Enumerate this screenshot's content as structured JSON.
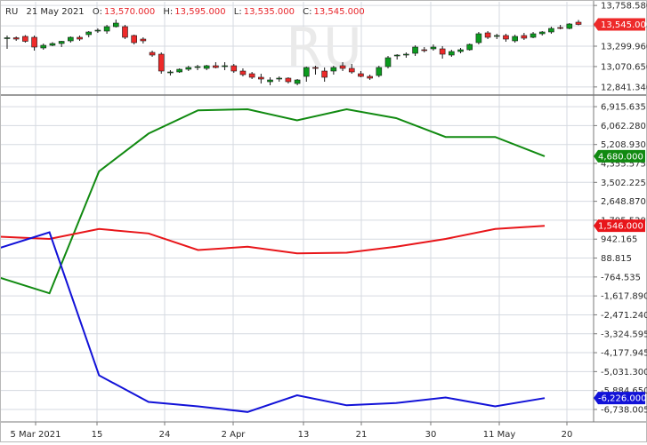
{
  "info_bar": {
    "symbol": "RU",
    "date": "21 May 2021",
    "open_label": "O:",
    "open": "13,570.000",
    "high_label": "H:",
    "high": "13,595.000",
    "low_label": "L:",
    "low": "13,535.000",
    "close_label": "C:",
    "close": "13,545.000"
  },
  "watermark": "RU",
  "colors": {
    "up": "#0b9b1e",
    "down": "#ee2a2a",
    "grid": "#d6dae1",
    "series_green": "#118a11",
    "series_red": "#e8161a",
    "series_blue": "#1212d8",
    "border": "#7a7a7a"
  },
  "chart_data": [
    {
      "type": "candlestick",
      "price_ticks": [
        "13,758.580",
        "13,529.340",
        "13,299.960",
        "13,070.650",
        "12,841.340"
      ],
      "current_price_label": "13,545.000",
      "ylim": [
        12760,
        13800
      ],
      "candles": [
        {
          "o": 13390,
          "h": 13420,
          "l": 13270,
          "c": 13395
        },
        {
          "o": 13395,
          "h": 13410,
          "l": 13360,
          "c": 13380
        },
        {
          "o": 13410,
          "h": 13425,
          "l": 13340,
          "c": 13355
        },
        {
          "o": 13400,
          "h": 13420,
          "l": 13250,
          "c": 13290
        },
        {
          "o": 13280,
          "h": 13330,
          "l": 13260,
          "c": 13310
        },
        {
          "o": 13310,
          "h": 13345,
          "l": 13300,
          "c": 13330
        },
        {
          "o": 13330,
          "h": 13360,
          "l": 13290,
          "c": 13355
        },
        {
          "o": 13360,
          "h": 13410,
          "l": 13340,
          "c": 13400
        },
        {
          "o": 13400,
          "h": 13420,
          "l": 13360,
          "c": 13380
        },
        {
          "o": 13430,
          "h": 13470,
          "l": 13400,
          "c": 13460
        },
        {
          "o": 13470,
          "h": 13500,
          "l": 13450,
          "c": 13480
        },
        {
          "o": 13470,
          "h": 13540,
          "l": 13440,
          "c": 13520
        },
        {
          "o": 13520,
          "h": 13600,
          "l": 13510,
          "c": 13560
        },
        {
          "o": 13520,
          "h": 13540,
          "l": 13380,
          "c": 13400
        },
        {
          "o": 13420,
          "h": 13430,
          "l": 13320,
          "c": 13340
        },
        {
          "o": 13380,
          "h": 13400,
          "l": 13330,
          "c": 13360
        },
        {
          "o": 13230,
          "h": 13250,
          "l": 13180,
          "c": 13200
        },
        {
          "o": 13210,
          "h": 13230,
          "l": 12990,
          "c": 13020
        },
        {
          "o": 13000,
          "h": 13030,
          "l": 12970,
          "c": 13010
        },
        {
          "o": 13010,
          "h": 13050,
          "l": 13000,
          "c": 13040
        },
        {
          "o": 13040,
          "h": 13080,
          "l": 13020,
          "c": 13060
        },
        {
          "o": 13060,
          "h": 13090,
          "l": 13030,
          "c": 13070
        },
        {
          "o": 13050,
          "h": 13090,
          "l": 13030,
          "c": 13080
        },
        {
          "o": 13080,
          "h": 13120,
          "l": 13050,
          "c": 13060
        },
        {
          "o": 13070,
          "h": 13120,
          "l": 13030,
          "c": 13080
        },
        {
          "o": 13080,
          "h": 13100,
          "l": 13000,
          "c": 13020
        },
        {
          "o": 13020,
          "h": 13050,
          "l": 12960,
          "c": 12980
        },
        {
          "o": 12990,
          "h": 13010,
          "l": 12930,
          "c": 12950
        },
        {
          "o": 12950,
          "h": 12990,
          "l": 12880,
          "c": 12930
        },
        {
          "o": 12900,
          "h": 12950,
          "l": 12860,
          "c": 12920
        },
        {
          "o": 12930,
          "h": 12960,
          "l": 12900,
          "c": 12940
        },
        {
          "o": 12940,
          "h": 12950,
          "l": 12880,
          "c": 12900
        },
        {
          "o": 12880,
          "h": 12930,
          "l": 12860,
          "c": 12920
        },
        {
          "o": 12960,
          "h": 13070,
          "l": 12900,
          "c": 13060
        },
        {
          "o": 13060,
          "h": 13080,
          "l": 12980,
          "c": 13050
        },
        {
          "o": 13020,
          "h": 13060,
          "l": 12900,
          "c": 12950
        },
        {
          "o": 13020,
          "h": 13080,
          "l": 12980,
          "c": 13060
        },
        {
          "o": 13080,
          "h": 13120,
          "l": 13020,
          "c": 13050
        },
        {
          "o": 13050,
          "h": 13100,
          "l": 12990,
          "c": 13010
        },
        {
          "o": 12990,
          "h": 13020,
          "l": 12950,
          "c": 12960
        },
        {
          "o": 12960,
          "h": 12980,
          "l": 12920,
          "c": 12940
        },
        {
          "o": 12970,
          "h": 13080,
          "l": 12950,
          "c": 13060
        },
        {
          "o": 13070,
          "h": 13190,
          "l": 13050,
          "c": 13170
        },
        {
          "o": 13190,
          "h": 13210,
          "l": 13150,
          "c": 13200
        },
        {
          "o": 13200,
          "h": 13230,
          "l": 13170,
          "c": 13210
        },
        {
          "o": 13220,
          "h": 13310,
          "l": 13190,
          "c": 13290
        },
        {
          "o": 13260,
          "h": 13290,
          "l": 13230,
          "c": 13250
        },
        {
          "o": 13270,
          "h": 13320,
          "l": 13250,
          "c": 13290
        },
        {
          "o": 13270,
          "h": 13300,
          "l": 13160,
          "c": 13210
        },
        {
          "o": 13200,
          "h": 13260,
          "l": 13180,
          "c": 13240
        },
        {
          "o": 13240,
          "h": 13280,
          "l": 13220,
          "c": 13260
        },
        {
          "o": 13260,
          "h": 13330,
          "l": 13250,
          "c": 13320
        },
        {
          "o": 13340,
          "h": 13460,
          "l": 13320,
          "c": 13440
        },
        {
          "o": 13450,
          "h": 13470,
          "l": 13380,
          "c": 13400
        },
        {
          "o": 13410,
          "h": 13440,
          "l": 13380,
          "c": 13420
        },
        {
          "o": 13420,
          "h": 13440,
          "l": 13350,
          "c": 13380
        },
        {
          "o": 13360,
          "h": 13430,
          "l": 13340,
          "c": 13410
        },
        {
          "o": 13420,
          "h": 13450,
          "l": 13370,
          "c": 13390
        },
        {
          "o": 13400,
          "h": 13460,
          "l": 13390,
          "c": 13440
        },
        {
          "o": 13440,
          "h": 13470,
          "l": 13420,
          "c": 13460
        },
        {
          "o": 13460,
          "h": 13520,
          "l": 13440,
          "c": 13500
        },
        {
          "o": 13510,
          "h": 13540,
          "l": 13490,
          "c": 13500
        },
        {
          "o": 13500,
          "h": 13560,
          "l": 13490,
          "c": 13550
        },
        {
          "o": 13570,
          "h": 13595,
          "l": 13535,
          "c": 13545
        }
      ]
    },
    {
      "type": "line",
      "ylim": [
        -7300,
        7400
      ],
      "axis_ticks": [
        "6,915.635",
        "6,062.280",
        "5,208.930",
        "4,355.575",
        "3,502.225",
        "2,648.870",
        "1,795.520",
        "942.165",
        "88.815",
        "-764.535",
        "-1,617.890",
        "-2,471.240",
        "-3,324.595",
        "-4,177.945",
        "-5,031.300",
        "-5,884.650",
        "-6,738.005"
      ],
      "x_tick_labels": [
        "5 Mar 2021",
        "15",
        "24",
        "2 Apr",
        "13",
        "21",
        "30",
        "11 May",
        "20"
      ],
      "series": [
        {
          "values": [
            -800,
            -1500,
            4000,
            5700,
            6750,
            6800,
            6300,
            6800,
            6400,
            5550,
            5550,
            4680
          ],
          "color": "#118a11",
          "badge": "4,680.000"
        },
        {
          "values": [
            1050,
            950,
            1400,
            1200,
            450,
            600,
            300,
            330,
            600,
            950,
            1400,
            1546
          ],
          "color": "#e8161a",
          "badge": "1,546.000"
        },
        {
          "values": [
            550,
            1250,
            -5200,
            -6400,
            -6600,
            -6850,
            -6100,
            -6550,
            -6450,
            -6200,
            -6600,
            -6226
          ],
          "color": "#1212d8",
          "badge": "-6,226.000"
        }
      ]
    }
  ]
}
